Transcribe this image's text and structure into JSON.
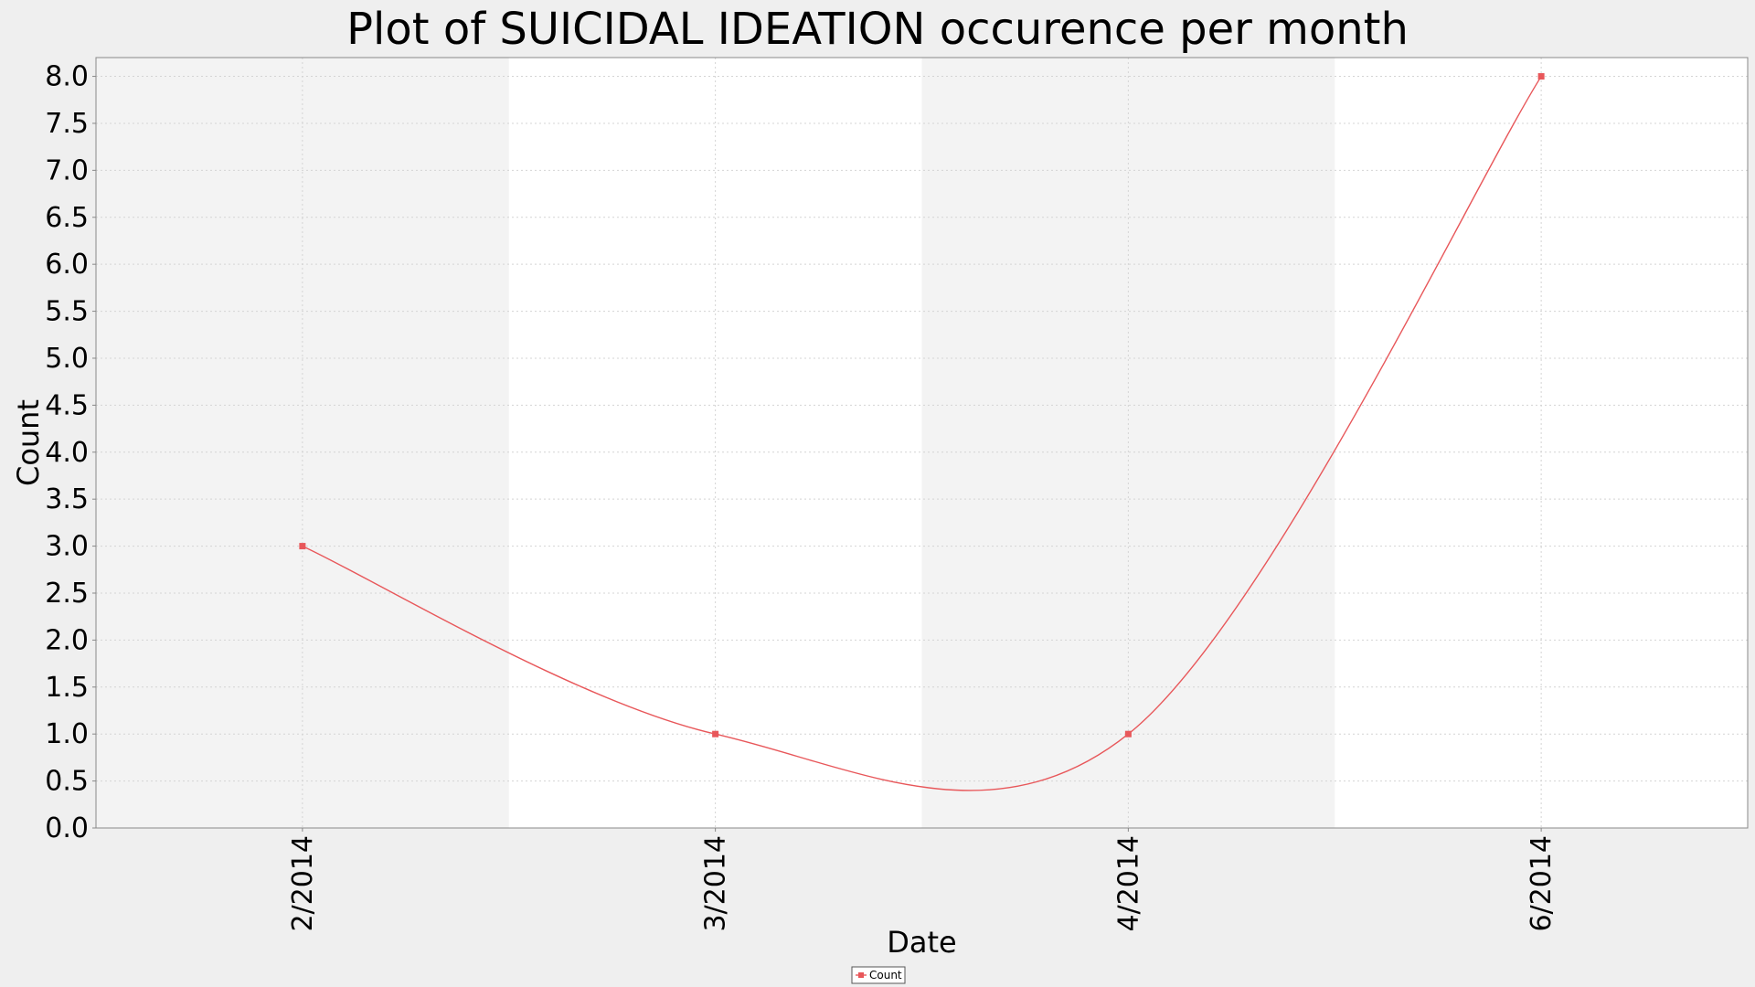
{
  "chart_data": {
    "type": "line",
    "title": "Plot of SUICIDAL IDEATION occurence per month",
    "xlabel": "Date",
    "ylabel": "Count",
    "categories": [
      "2/2014",
      "3/2014",
      "4/2014",
      "6/2014"
    ],
    "series": [
      {
        "name": "Count",
        "values": [
          3.0,
          1.0,
          1.0,
          8.0
        ],
        "color": "#e8575a",
        "smoothed": true
      }
    ],
    "ylim": [
      0,
      8.2
    ],
    "yticks": [
      "0.0",
      "0.5",
      "1.0",
      "1.5",
      "2.0",
      "2.5",
      "3.0",
      "3.5",
      "4.0",
      "4.5",
      "5.0",
      "5.5",
      "6.0",
      "6.5",
      "7.0",
      "7.5",
      "8.0"
    ],
    "grid": true,
    "alternating_bands": true,
    "legend": {
      "placement": "bottom-center",
      "entries": [
        "Count"
      ]
    }
  }
}
